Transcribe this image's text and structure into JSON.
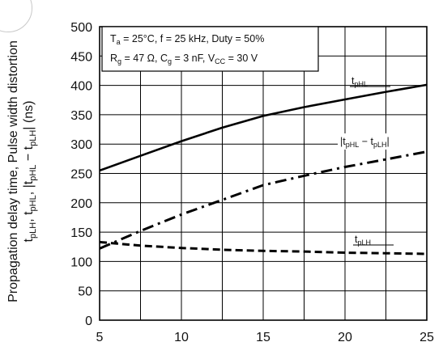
{
  "chart_data": {
    "type": "line",
    "title": "",
    "xlabel": "",
    "ylabel_main": "Propagation delay time, Pulse width distortion",
    "ylabel_sub_1": "t",
    "ylabel_sub_1s": "pLH",
    "ylabel_sub_2": ", t",
    "ylabel_sub_2s": "pHL",
    "ylabel_sub_3": ", |t",
    "ylabel_sub_3s": "pHL",
    "ylabel_sub_4": " − t",
    "ylabel_sub_4s": "pLH",
    "ylabel_sub_5": "|  (ns)",
    "xlim": [
      5,
      25
    ],
    "ylim": [
      0,
      500
    ],
    "x_ticks": [
      "5",
      "10",
      "15",
      "20",
      "25"
    ],
    "y_ticks": [
      "0",
      "50",
      "100",
      "150",
      "200",
      "250",
      "300",
      "350",
      "400",
      "450",
      "500"
    ],
    "grid": true,
    "conditions": {
      "line1": {
        "p1": "T",
        "s1": "a",
        "p2": " = 25°C, f = 25 kHz, Duty = 50%"
      },
      "line2": {
        "p1": "R",
        "s1": "g",
        "p2": " = 47 Ω, C",
        "s2": "g",
        "p3": " = 3 nF, V",
        "s3": "CC",
        "p4": " = 30 V"
      }
    },
    "series": [
      {
        "label_main": "t",
        "label_sub": "pHL",
        "style": "solid",
        "x": [
          5,
          7.5,
          10,
          12.5,
          15,
          17.5,
          20,
          22.5,
          25
        ],
        "y": [
          255,
          280,
          305,
          328,
          348,
          363,
          376,
          389,
          401
        ]
      },
      {
        "label_pre": "|t",
        "label_sub1": "pHL",
        "label_mid": " − t",
        "label_sub2": "pLH",
        "label_post": "|",
        "style": "dashdot",
        "x": [
          5,
          7.5,
          10,
          12.5,
          15,
          17.5,
          20,
          22.5,
          25
        ],
        "y": [
          122,
          152,
          180,
          205,
          230,
          246,
          261,
          274,
          287
        ]
      },
      {
        "label_main": "t",
        "label_sub": "pLH",
        "style": "dashed",
        "x": [
          5,
          7.5,
          10,
          12.5,
          15,
          17.5,
          20,
          22.5,
          25
        ],
        "y": [
          133,
          127,
          123,
          120,
          118,
          117,
          115,
          114,
          113
        ]
      }
    ]
  }
}
